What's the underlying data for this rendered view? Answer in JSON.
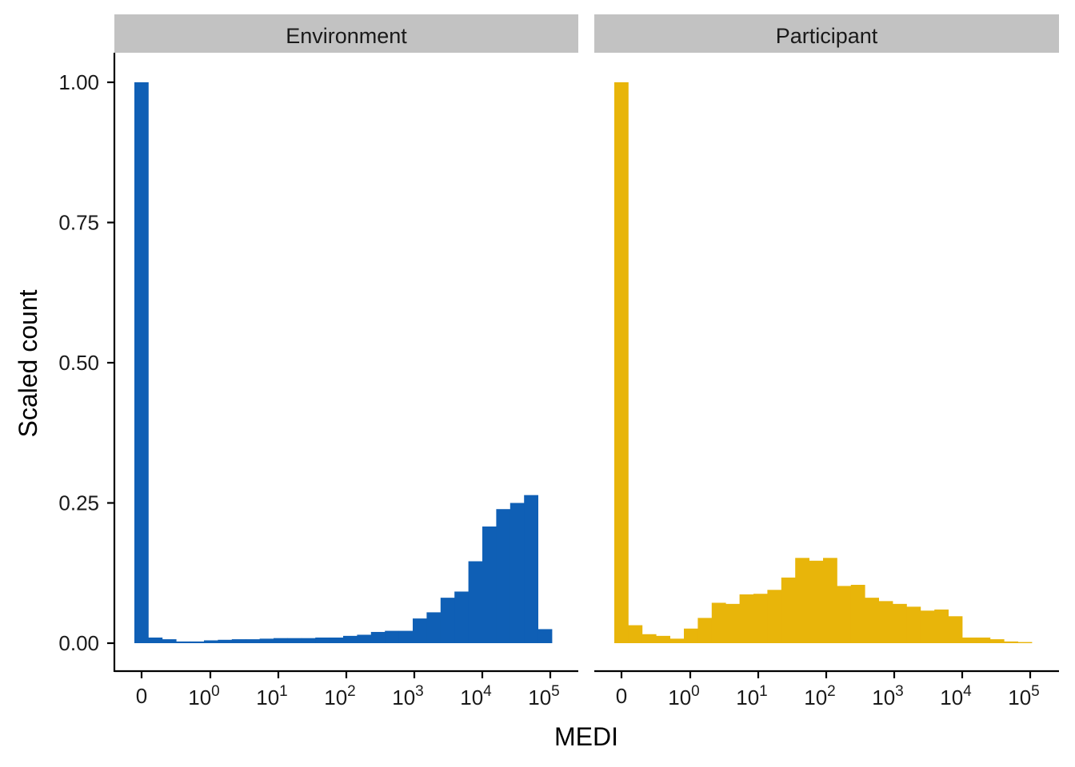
{
  "chart_data": {
    "type": "bar",
    "ylabel": "Scaled count",
    "xlabel": "MEDI",
    "x_scale": "pseudo-log",
    "y_ticks": [
      "0.00",
      "0.25",
      "0.50",
      "0.75",
      "1.00"
    ],
    "ylim": [
      0,
      1
    ],
    "x_ticks": [
      {
        "base": "0",
        "exp": ""
      },
      {
        "base": "10",
        "exp": "0"
      },
      {
        "base": "10",
        "exp": "1"
      },
      {
        "base": "10",
        "exp": "2"
      },
      {
        "base": "10",
        "exp": "3"
      },
      {
        "base": "10",
        "exp": "4"
      },
      {
        "base": "10",
        "exp": "5"
      }
    ],
    "grid": false,
    "legend": "none",
    "panels": [
      {
        "label": "Environment",
        "color": "#0F5FB5",
        "values": [
          1.0,
          0.01,
          0.007,
          0.003,
          0.003,
          0.005,
          0.006,
          0.007,
          0.007,
          0.008,
          0.009,
          0.009,
          0.009,
          0.01,
          0.01,
          0.013,
          0.015,
          0.02,
          0.022,
          0.022,
          0.044,
          0.055,
          0.081,
          0.092,
          0.146,
          0.208,
          0.239,
          0.25,
          0.264,
          0.025
        ]
      },
      {
        "label": "Participant",
        "color": "#E8B50A",
        "values": [
          1.0,
          0.032,
          0.016,
          0.013,
          0.008,
          0.026,
          0.045,
          0.072,
          0.07,
          0.087,
          0.088,
          0.095,
          0.117,
          0.152,
          0.147,
          0.152,
          0.102,
          0.104,
          0.081,
          0.075,
          0.07,
          0.065,
          0.058,
          0.06,
          0.048,
          0.01,
          0.01,
          0.007,
          0.003,
          0.002
        ]
      }
    ]
  }
}
